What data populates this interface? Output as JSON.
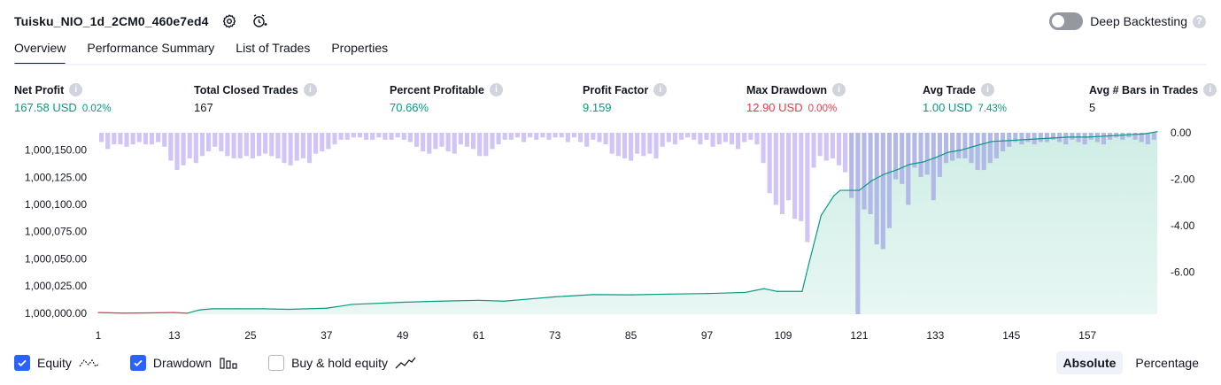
{
  "header": {
    "strategy_name": "Tuisku_NIO_1d_2CM0_460e7ed4",
    "deep_backtesting_label": "Deep Backtesting",
    "deep_backtesting_enabled": false
  },
  "tabs": [
    {
      "label": "Overview",
      "active": true
    },
    {
      "label": "Performance Summary",
      "active": false
    },
    {
      "label": "List of Trades",
      "active": false
    },
    {
      "label": "Properties",
      "active": false
    }
  ],
  "metrics": [
    {
      "label": "Net Profit",
      "value": "167.58 USD",
      "sub": "0.02%",
      "tone": "green"
    },
    {
      "label": "Total Closed Trades",
      "value": "167",
      "sub": "",
      "tone": "dark"
    },
    {
      "label": "Percent Profitable",
      "value": "70.66%",
      "sub": "",
      "tone": "green"
    },
    {
      "label": "Profit Factor",
      "value": "9.159",
      "sub": "",
      "tone": "green"
    },
    {
      "label": "Max Drawdown",
      "value": "12.90 USD",
      "sub": "0.00%",
      "tone": "red"
    },
    {
      "label": "Avg Trade",
      "value": "1.00 USD",
      "sub": "7.43%",
      "tone": "green"
    },
    {
      "label": "Avg # Bars in Trades",
      "value": "5",
      "sub": "",
      "tone": "dark"
    }
  ],
  "legend": {
    "equity_label": "Equity",
    "equity_checked": true,
    "drawdown_label": "Drawdown",
    "drawdown_checked": true,
    "buyhold_label": "Buy & hold equity",
    "buyhold_checked": false
  },
  "mode": {
    "absolute_label": "Absolute",
    "percentage_label": "Percentage",
    "selected": "Absolute"
  },
  "colors": {
    "equity_line": "#089981",
    "equity_below_start": "#f23645",
    "equity_fill": "#ccede4",
    "drawdown_bar": "#d1c4f6",
    "drawdown_bar_overlap": "#b3b9e6",
    "accent": "#2962ff"
  },
  "chart_data": {
    "type": "area",
    "x_ticks": [
      "1",
      "13",
      "25",
      "37",
      "49",
      "61",
      "73",
      "85",
      "97",
      "109",
      "121",
      "133",
      "145",
      "157"
    ],
    "x_range": [
      1,
      168
    ],
    "equity_axis": {
      "ticks": [
        "1,000,000.00",
        "1,000,025.00",
        "1,000,050.00",
        "1,000,075.00",
        "1,000,100.00",
        "1,000,125.00",
        "1,000,150.00"
      ],
      "range": [
        999999,
        1000166
      ]
    },
    "drawdown_axis": {
      "ticks": [
        "0.00",
        "-2.00",
        "-4.00",
        "-6.00"
      ],
      "range": [
        -7.8,
        0
      ]
    },
    "series": [
      {
        "name": "Equity",
        "points": [
          [
            1,
            1000000.5
          ],
          [
            5,
            1000000
          ],
          [
            9,
            1000000.2
          ],
          [
            13,
            1000000.5
          ],
          [
            15,
            999999.9
          ],
          [
            17,
            1000003
          ],
          [
            19,
            1000004
          ],
          [
            23,
            1000004
          ],
          [
            27,
            1000004
          ],
          [
            31,
            1000003.5
          ],
          [
            37,
            1000004.5
          ],
          [
            41,
            1000008
          ],
          [
            49,
            1000010
          ],
          [
            55,
            1000011
          ],
          [
            61,
            1000011.8
          ],
          [
            65,
            1000011
          ],
          [
            69,
            1000013
          ],
          [
            73,
            1000015
          ],
          [
            79,
            1000017
          ],
          [
            85,
            1000016.8
          ],
          [
            91,
            1000017.5
          ],
          [
            97,
            1000018
          ],
          [
            103,
            1000019
          ],
          [
            106,
            1000022.5
          ],
          [
            108,
            1000020
          ],
          [
            112,
            1000020
          ],
          [
            113,
            1000044
          ],
          [
            115,
            1000090
          ],
          [
            117,
            1000108
          ],
          [
            118,
            1000113
          ],
          [
            121,
            1000113
          ],
          [
            123,
            1000122
          ],
          [
            125,
            1000128
          ],
          [
            127,
            1000132
          ],
          [
            129,
            1000137
          ],
          [
            131,
            1000139
          ],
          [
            133,
            1000143
          ],
          [
            135,
            1000148
          ],
          [
            137,
            1000150
          ],
          [
            140,
            1000155
          ],
          [
            142,
            1000158
          ],
          [
            145,
            1000159
          ],
          [
            148,
            1000160
          ],
          [
            151,
            1000161
          ],
          [
            154,
            1000162
          ],
          [
            157,
            1000162
          ],
          [
            160,
            1000163
          ],
          [
            163,
            1000164
          ],
          [
            166,
            1000165
          ],
          [
            168,
            1000167
          ]
        ]
      },
      {
        "name": "Drawdown",
        "values": [
          -0.4,
          -0.7,
          -0.5,
          -0.5,
          -0.6,
          -0.5,
          -0.4,
          -0.5,
          -0.5,
          -0.4,
          -0.6,
          -1.2,
          -1.6,
          -1.4,
          -1.1,
          -1.3,
          -1.0,
          -0.8,
          -0.6,
          -0.8,
          -1.0,
          -1.1,
          -1.1,
          -1.0,
          -1.1,
          -1.0,
          -0.9,
          -1.0,
          -1.1,
          -1.3,
          -1.4,
          -1.2,
          -1.1,
          -1.3,
          -0.9,
          -0.8,
          -0.7,
          -0.5,
          -0.3,
          -0.3,
          -0.2,
          -0.2,
          -0.3,
          -0.3,
          -0.2,
          -0.3,
          -0.3,
          -0.2,
          -0.3,
          -0.4,
          -0.6,
          -0.8,
          -0.9,
          -0.7,
          -0.6,
          -0.8,
          -0.9,
          -0.5,
          -0.6,
          -0.7,
          -1.0,
          -1.0,
          -0.7,
          -0.5,
          -0.3,
          -0.3,
          -0.2,
          -0.4,
          -0.2,
          -0.3,
          -0.2,
          -0.3,
          -0.2,
          -0.2,
          -0.4,
          -0.2,
          -0.4,
          -0.6,
          -0.3,
          -0.4,
          -0.5,
          -0.9,
          -1.0,
          -1.1,
          -1.2,
          -0.9,
          -1.0,
          -0.9,
          -1.1,
          -0.6,
          -0.4,
          -0.5,
          -0.3,
          -0.2,
          -0.3,
          -0.5,
          -0.3,
          -0.6,
          -0.5,
          -0.4,
          -0.5,
          -0.7,
          -0.4,
          -0.3,
          -0.5,
          -1.3,
          -2.6,
          -3.1,
          -3.5,
          -2.9,
          -3.7,
          -3.8,
          -4.7,
          -1.5,
          -1.0,
          -1.2,
          -1.1,
          -1.4,
          -1.7,
          -2.8,
          -7.8,
          -3.3,
          -3.5,
          -4.8,
          -5.0,
          -4.1,
          -2.0,
          -2.2,
          -3.1,
          -1.5,
          -1.9,
          -1.8,
          -2.9,
          -1.9,
          -1.3,
          -1.2,
          -1.1,
          -1.1,
          -1.3,
          -1.6,
          -1.6,
          -1.3,
          -1.1,
          -0.8,
          -0.6,
          -0.4,
          -0.5,
          -0.4,
          -0.5,
          -0.4,
          -0.4,
          -0.3,
          -0.4,
          -0.5,
          -0.3,
          -0.4,
          -0.5,
          -0.3,
          -0.4,
          -0.5,
          -0.3,
          -0.2,
          -0.3,
          -0.2,
          -0.3,
          -0.4,
          -0.5,
          -0.3
        ]
      }
    ],
    "grid": false
  }
}
